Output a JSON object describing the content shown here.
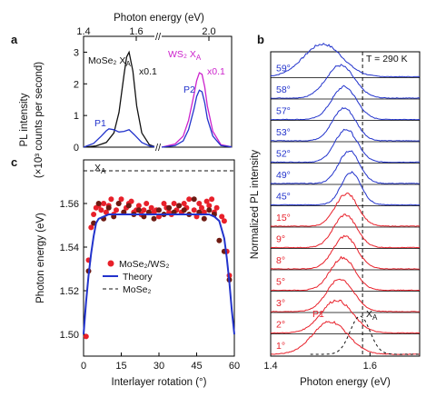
{
  "colors": {
    "black": "#111111",
    "blue": "#2233cc",
    "magenta": "#cc22cc",
    "red": "#e8202a",
    "darkred": "#6e1a12",
    "green": "#2a8a2a"
  },
  "chart_data": [
    {
      "panel": "a",
      "type": "line",
      "panel_label": "a",
      "xlabel": "Photon energy (eV)",
      "ylabel": "PL intensity",
      "ylabel2": "(×10³ counts per second)",
      "x_ticks_left": [
        "1.4",
        "1.6"
      ],
      "x_ticks_right": [
        "2.0"
      ],
      "x_break_symbol": "//",
      "y_ticks": [
        "0",
        "1",
        "2",
        "3"
      ],
      "ylim": [
        0,
        3.5
      ],
      "annotations": {
        "mose2": "MoSe₂ X",
        "mose2_sub": "A",
        "mose2_scale": "x0.1",
        "ws2": "WS₂ X",
        "ws2_sub": "A",
        "ws2_scale": "x0.1",
        "p1": "P1",
        "p2": "P2"
      },
      "series": [
        {
          "name": "MoSe2 black",
          "color": "black",
          "x": [
            1.4,
            1.45,
            1.49,
            1.52,
            1.54,
            1.56,
            1.57,
            1.58,
            1.595,
            1.61,
            1.63,
            1.66,
            1.68
          ],
          "y": [
            0.0,
            0.04,
            0.15,
            0.45,
            1.1,
            2.3,
            2.85,
            3.0,
            2.4,
            1.3,
            0.45,
            0.08,
            0.02
          ]
        },
        {
          "name": "MoSe2 blue",
          "color": "blue",
          "x": [
            1.4,
            1.44,
            1.47,
            1.49,
            1.5,
            1.52,
            1.54,
            1.56,
            1.58,
            1.6,
            1.63,
            1.66,
            1.68
          ],
          "y": [
            0.0,
            0.12,
            0.35,
            0.52,
            0.58,
            0.55,
            0.48,
            0.5,
            0.55,
            0.4,
            0.15,
            0.04,
            0.01
          ]
        },
        {
          "name": "WS2 magenta",
          "color": "magenta",
          "x": [
            1.8,
            1.85,
            1.88,
            1.9,
            1.92,
            1.93,
            1.94,
            1.95,
            1.96,
            1.97,
            1.99,
            2.02,
            2.06
          ],
          "y": [
            0.0,
            0.1,
            0.35,
            0.85,
            1.65,
            2.1,
            2.35,
            2.3,
            1.9,
            1.3,
            0.5,
            0.08,
            0.01
          ]
        },
        {
          "name": "WS2 blue",
          "color": "blue",
          "x": [
            1.8,
            1.85,
            1.88,
            1.9,
            1.92,
            1.93,
            1.94,
            1.95,
            1.96,
            1.97,
            1.99,
            2.02,
            2.06
          ],
          "y": [
            0.0,
            0.05,
            0.2,
            0.55,
            1.2,
            1.6,
            1.8,
            1.75,
            1.4,
            0.9,
            0.35,
            0.05,
            0.01
          ]
        }
      ]
    },
    {
      "panel": "c",
      "type": "scatter",
      "panel_label": "c",
      "xlabel": "Interlayer rotation (°)",
      "ylabel": "Photon energy (eV)",
      "xlim": [
        0,
        60
      ],
      "ylim": [
        1.49,
        1.58
      ],
      "x_ticks": [
        0,
        15,
        30,
        45,
        60
      ],
      "y_ticks": [
        1.5,
        1.52,
        1.54,
        1.56
      ],
      "y_tick_labels": [
        "1.50",
        "1.52",
        "1.54",
        "1.56"
      ],
      "xa_level": 1.575,
      "xa_label": "X",
      "xa_sub": "A",
      "legend": [
        {
          "label": "MoSe₂/WS₂",
          "kind": "dot",
          "color": "red"
        },
        {
          "label": "Theory",
          "kind": "line",
          "color": "blue"
        },
        {
          "label": "MoSe₂",
          "kind": "dash",
          "color": "black"
        }
      ],
      "theory": {
        "x": [
          0,
          1,
          2,
          3,
          4,
          5,
          6,
          8,
          10,
          15,
          20,
          30,
          40,
          45,
          50,
          52,
          54,
          56,
          57,
          58,
          59,
          60
        ],
        "y": [
          1.5,
          1.515,
          1.527,
          1.537,
          1.545,
          1.551,
          1.553,
          1.554,
          1.555,
          1.555,
          1.555,
          1.555,
          1.555,
          1.555,
          1.555,
          1.554,
          1.552,
          1.544,
          1.535,
          1.524,
          1.511,
          1.5
        ]
      },
      "series": [
        {
          "name": "red points",
          "color": "red",
          "x": [
            1,
            2,
            3,
            4,
            5,
            6,
            7,
            8,
            9,
            10,
            11,
            12,
            13,
            14,
            15,
            16,
            17,
            18,
            19,
            20,
            21,
            22,
            23,
            24,
            25,
            27,
            28,
            29,
            30,
            32,
            33,
            34,
            35,
            36,
            37,
            38,
            39,
            40,
            41,
            42,
            44,
            45,
            46,
            47,
            48,
            49,
            50,
            51,
            52,
            53,
            55,
            56,
            57,
            58
          ],
          "y": [
            1.499,
            1.534,
            1.549,
            1.555,
            1.558,
            1.559,
            1.557,
            1.56,
            1.556,
            1.559,
            1.562,
            1.555,
            1.557,
            1.56,
            1.562,
            1.556,
            1.558,
            1.56,
            1.561,
            1.556,
            1.557,
            1.559,
            1.555,
            1.557,
            1.56,
            1.558,
            1.556,
            1.557,
            1.554,
            1.56,
            1.558,
            1.556,
            1.555,
            1.56,
            1.557,
            1.559,
            1.556,
            1.56,
            1.558,
            1.562,
            1.557,
            1.554,
            1.56,
            1.558,
            1.556,
            1.561,
            1.559,
            1.562,
            1.556,
            1.558,
            1.554,
            1.552,
            1.538,
            1.527
          ]
        },
        {
          "name": "dark points",
          "color": "darkred",
          "x": [
            2,
            4,
            6,
            8,
            10,
            12,
            14,
            16,
            18,
            20,
            22,
            24,
            26,
            28,
            30,
            32,
            34,
            36,
            38,
            40,
            42,
            44,
            46,
            48,
            50,
            52,
            54,
            56,
            58
          ],
          "y": [
            1.529,
            1.551,
            1.56,
            1.553,
            1.558,
            1.554,
            1.56,
            1.556,
            1.559,
            1.555,
            1.557,
            1.554,
            1.556,
            1.553,
            1.557,
            1.555,
            1.558,
            1.556,
            1.559,
            1.557,
            1.555,
            1.562,
            1.556,
            1.553,
            1.557,
            1.555,
            1.543,
            1.538,
            1.525
          ]
        }
      ]
    },
    {
      "panel": "b",
      "type": "line",
      "panel_label": "b",
      "xlabel": "Photon energy (eV)",
      "ylabel": "Normalized PL intensity",
      "xlim": [
        1.4,
        1.7
      ],
      "x_ticks": [
        1.4,
        1.6
      ],
      "x_tick_labels": [
        "1.4",
        "1.6"
      ],
      "temperature_label": "T = 290 K",
      "dashed_x": 1.585,
      "p1_label": "P1",
      "xa_label": "X",
      "xa_sub": "A",
      "curves": [
        {
          "angle": "59°",
          "color": "blue",
          "center": 1.505,
          "width": 0.055,
          "shoulder": 0.0
        },
        {
          "angle": "58°",
          "color": "blue",
          "center": 1.54,
          "width": 0.04,
          "shoulder": 0.0
        },
        {
          "angle": "57°",
          "color": "blue",
          "center": 1.548,
          "width": 0.035,
          "shoulder": 0.0
        },
        {
          "angle": "53°",
          "color": "blue",
          "center": 1.548,
          "width": 0.033,
          "shoulder": 0.0
        },
        {
          "angle": "52°",
          "color": "blue",
          "center": 1.552,
          "width": 0.032,
          "shoulder": 0.0
        },
        {
          "angle": "49°",
          "color": "blue",
          "center": 1.558,
          "width": 0.03,
          "shoulder": 0.0
        },
        {
          "angle": "45°",
          "color": "blue",
          "center": 1.562,
          "width": 0.028,
          "shoulder": 0.0
        },
        {
          "angle": "15°",
          "color": "red",
          "center": 1.553,
          "width": 0.032,
          "shoulder": 0.0
        },
        {
          "angle": "9°",
          "color": "red",
          "center": 1.55,
          "width": 0.033,
          "shoulder": 0.0
        },
        {
          "angle": "8°",
          "color": "red",
          "center": 1.55,
          "width": 0.034,
          "shoulder": 0.0
        },
        {
          "angle": "5°",
          "color": "red",
          "center": 1.545,
          "width": 0.035,
          "shoulder": 0.0
        },
        {
          "angle": "3°",
          "color": "red",
          "center": 1.54,
          "width": 0.038,
          "shoulder": 0.0
        },
        {
          "angle": "2°",
          "color": "red",
          "center": 1.533,
          "width": 0.045,
          "shoulder": 0.0
        },
        {
          "angle": "1°",
          "color": "red",
          "center": 1.52,
          "width": 0.05,
          "shoulder": 0.0
        }
      ],
      "mose2_ref": {
        "center": 1.58,
        "width": 0.028
      }
    }
  ]
}
